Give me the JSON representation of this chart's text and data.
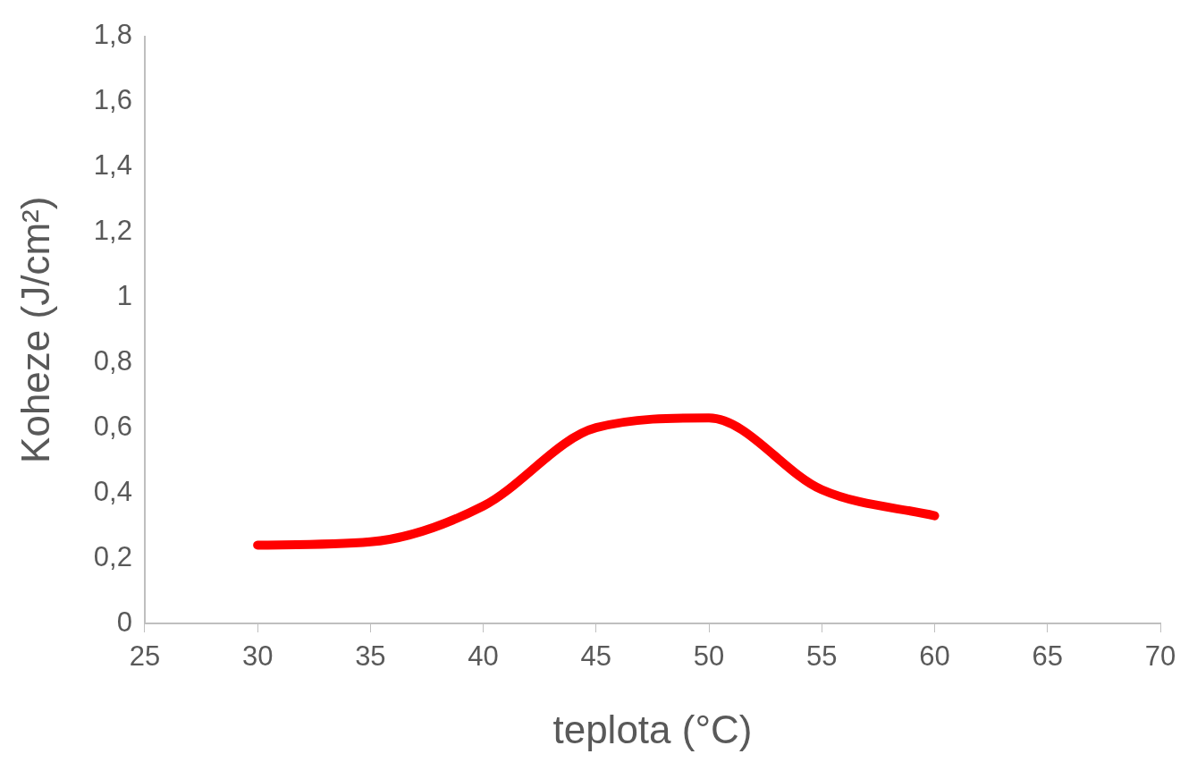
{
  "chart_data": {
    "type": "line",
    "xlabel": "teplota (°C)",
    "ylabel": "Koheze (J/cm²)",
    "x": [
      30,
      35,
      40,
      45,
      50,
      55,
      60
    ],
    "series": [
      {
        "color": "#ff0000",
        "values": [
          0.24,
          0.25,
          0.36,
          0.6,
          0.63,
          0.41,
          0.33
        ]
      }
    ],
    "xlim": [
      25,
      70
    ],
    "xticks": [
      25,
      30,
      35,
      40,
      45,
      50,
      55,
      60,
      65,
      70
    ],
    "ylim": [
      0,
      1.8
    ],
    "yticks": [
      {
        "value": 0,
        "label": "0"
      },
      {
        "value": 0.2,
        "label": "0,2"
      },
      {
        "value": 0.4,
        "label": "0,4"
      },
      {
        "value": 0.6,
        "label": "0,6"
      },
      {
        "value": 0.8,
        "label": "0,8"
      },
      {
        "value": 1,
        "label": "1"
      },
      {
        "value": 1.2,
        "label": "1,2"
      },
      {
        "value": 1.4,
        "label": "1,4"
      },
      {
        "value": 1.6,
        "label": "1,6"
      },
      {
        "value": 1.8,
        "label": "1,8"
      }
    ],
    "grid": false,
    "legend": false,
    "marker": "none",
    "line_style": "solid"
  }
}
